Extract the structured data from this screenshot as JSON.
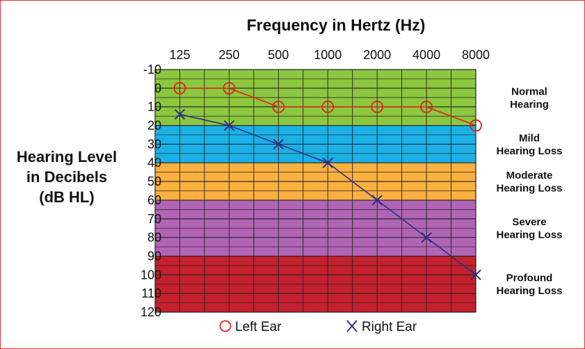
{
  "chart_data": {
    "type": "line",
    "title": "Frequency in Hertz (Hz)",
    "xlabel": "Frequency in Hertz (Hz)",
    "ylabel_lines": [
      "Hearing Level",
      "in Decibels",
      "(dB HL)"
    ],
    "x_ticks": [
      "125",
      "250",
      "500",
      "1000",
      "2000",
      "4000",
      "8000"
    ],
    "y_ticks": [
      -10,
      0,
      10,
      20,
      30,
      40,
      50,
      60,
      70,
      80,
      90,
      100,
      110,
      120
    ],
    "ylim": [
      -10,
      120
    ],
    "y_inverted": true,
    "grid": true,
    "bands": [
      {
        "label_lines": [
          "Normal",
          "Hearing"
        ],
        "from": -10,
        "to": 20,
        "color": "#8dc63f"
      },
      {
        "label_lines": [
          "Mild",
          "Hearing Loss"
        ],
        "from": 20,
        "to": 40,
        "color": "#1bb1e6"
      },
      {
        "label_lines": [
          "Moderate",
          "Hearing Loss"
        ],
        "from": 40,
        "to": 60,
        "color": "#fbb040"
      },
      {
        "label_lines": [
          "Severe",
          "Hearing Loss"
        ],
        "from": 60,
        "to": 90,
        "color": "#b064b4"
      },
      {
        "label_lines": [
          "Profound",
          "Hearing Loss"
        ],
        "from": 90,
        "to": 120,
        "color": "#c4202e"
      }
    ],
    "series": [
      {
        "name": "Left Ear",
        "marker": "circle",
        "color": "#e0231b",
        "values": [
          0,
          0,
          10,
          10,
          10,
          10,
          20
        ]
      },
      {
        "name": "Right Ear",
        "marker": "x",
        "color": "#2e2e8c",
        "values": [
          14,
          20,
          30,
          40,
          60,
          80,
          100
        ]
      }
    ]
  }
}
